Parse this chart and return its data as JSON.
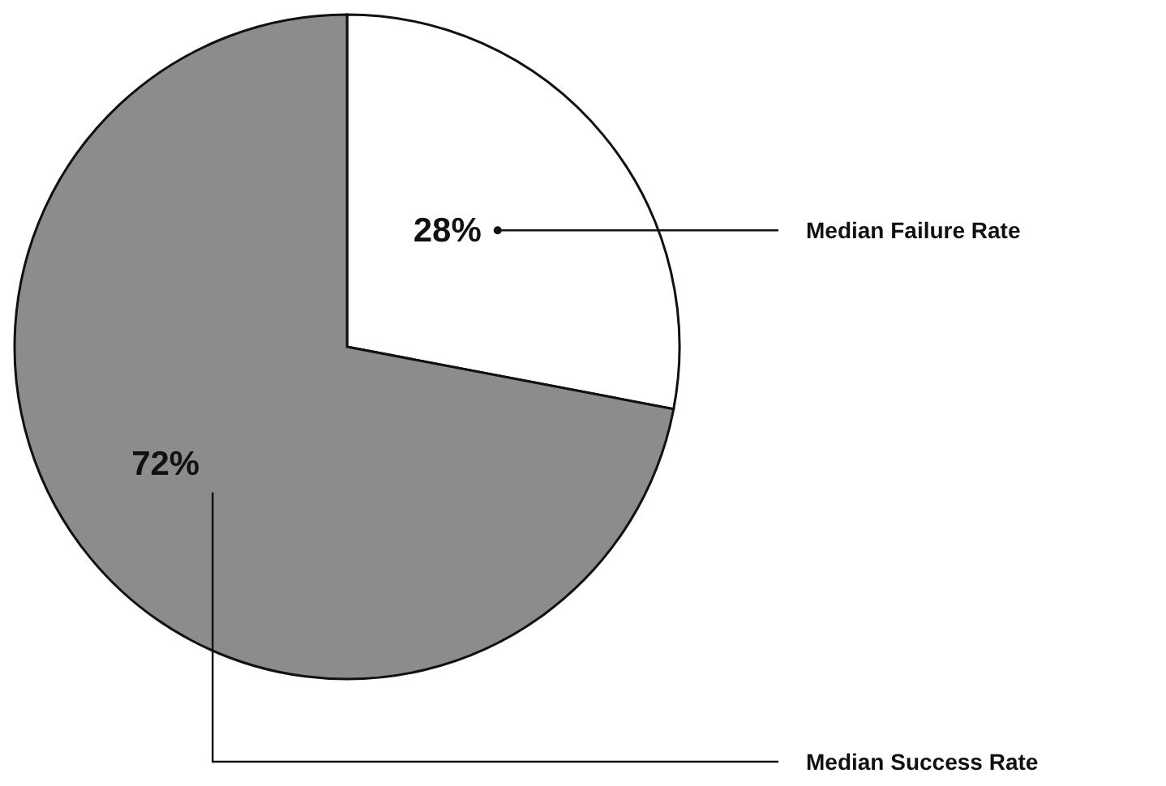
{
  "chart_data": {
    "type": "pie",
    "categories": [
      "Median Failure Rate",
      "Median Success Rate"
    ],
    "values": [
      28,
      72
    ],
    "colors": [
      "#ffffff",
      "#8c8c8c"
    ],
    "value_labels": [
      "28%",
      "72%"
    ],
    "legend": false
  }
}
